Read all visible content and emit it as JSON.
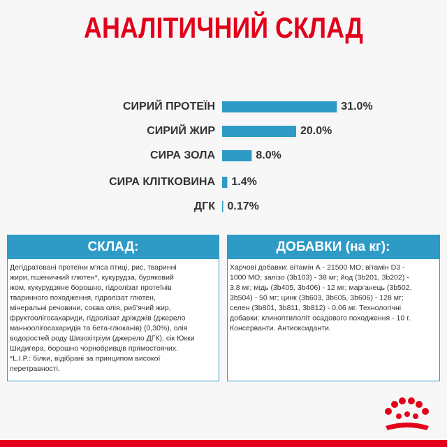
{
  "chart_data": {
    "type": "bar",
    "orientation": "horizontal",
    "title": "АНАЛІТИЧНИЙ СКЛАД",
    "categories": [
      "СИРИЙ ПРОТЕЇН",
      "СИРИЙ ЖИР",
      "СИРА ЗОЛА",
      "СИРА КЛІТКОВИНА",
      "ДГК"
    ],
    "values": [
      31.0,
      20.0,
      8.0,
      1.4,
      0.17
    ],
    "value_labels": [
      "31.0%",
      "20.0%",
      "8.0%",
      "1.4%",
      "0.17%"
    ],
    "color": "#2e9bc6"
  },
  "panels": [
    {
      "title": "СКЛАД:",
      "lines": [
        "Дегідратовані протеїни м'яса птиці, рис, тваринні",
        "жири, пшеничний глютен*, кукурудза, буряковий",
        "жом, кукурудзяне борошно, гідролізат протеїнів",
        "тваринного походження, гідролізат глютен,",
        "мінеральні речовини, соєва олія, риб'ячий жир,",
        "фруктоолігосахариди, гідролізат дріжджів (джерело",
        "манноолігосахаридів та бета-глюканів) (0,30%), олія",
        "водоростей роду Шизохітріум (джерело ДГК), сік Юкки",
        "Шидигера, борошно чорнобривців прямостоячих.",
        "*L.I.P.: білки, відібрані за принципом високої",
        "перетравності."
      ]
    },
    {
      "title": "ДОБАВКИ (на кг):",
      "lines": [
        "Харчові добавки: вітамін А - 21500 МО; вітамін D3 -",
        "1000 МО; залізо (3b103) - 38 мг; йод (3b201, 3b202) -",
        "3,8 мг; мідь (3b405, 3b406) - 12 мг; марганець (3b502,",
        "3b504) - 50 мг; цинк (3b603, 3b605, 3b606) - 128 мг;",
        "селен (3b801, 3b811, 3b812) - 0,06 мг. Технологічні",
        "добавки: клиноптилоліт осадового походження - 10 г.",
        "Консерванти. Антиоксиданти."
      ]
    }
  ]
}
